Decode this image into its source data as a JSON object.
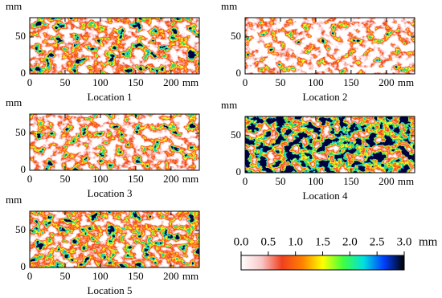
{
  "chart_data": [
    {
      "type": "heatmap",
      "title": "Location 1",
      "xlabel": "mm",
      "ylabel": "mm",
      "xlim": [
        0,
        240
      ],
      "xticks": [
        0,
        50,
        100,
        150,
        200
      ],
      "ylim": [
        0,
        76
      ],
      "yticks": [
        0,
        50
      ]
    },
    {
      "type": "heatmap",
      "title": "Location 2",
      "xlabel": "mm",
      "ylabel": "mm",
      "xlim": [
        0,
        240
      ],
      "xticks": [
        0,
        50,
        100,
        150,
        200
      ],
      "ylim": [
        0,
        76
      ],
      "yticks": [
        0,
        50
      ]
    },
    {
      "type": "heatmap",
      "title": "Location 3",
      "xlabel": "mm",
      "ylabel": "mm",
      "xlim": [
        0,
        240
      ],
      "xticks": [
        0,
        50,
        100,
        150,
        200
      ],
      "ylim": [
        0,
        76
      ],
      "yticks": [
        0,
        50
      ]
    },
    {
      "type": "heatmap",
      "title": "Location 4",
      "xlabel": "mm",
      "ylabel": "mm",
      "xlim": [
        0,
        240
      ],
      "xticks": [
        0,
        50,
        100,
        150,
        200
      ],
      "ylim": [
        0,
        76
      ],
      "yticks": [
        0,
        50
      ]
    },
    {
      "type": "heatmap",
      "title": "Location 5",
      "xlabel": "mm",
      "ylabel": "mm",
      "xlim": [
        0,
        240
      ],
      "xticks": [
        0,
        50,
        100,
        150,
        200
      ],
      "ylim": [
        0,
        76
      ],
      "yticks": [
        0,
        50
      ]
    },
    {
      "type": "colorbar",
      "label": "mm",
      "lim": [
        0,
        3
      ],
      "ticks": [
        {
          "value": 0,
          "label": "0.0"
        },
        {
          "value": 0.5,
          "label": "0.5"
        },
        {
          "value": 1,
          "label": "1.0"
        },
        {
          "value": 1.5,
          "label": "1.5"
        },
        {
          "value": 2,
          "label": "2.0"
        },
        {
          "value": 2.5,
          "label": "2.5"
        },
        {
          "value": 3,
          "label": "3.0"
        }
      ],
      "colors": [
        "#ffffff",
        "#f8c8c8",
        "#f04020",
        "#ff8000",
        "#ffff00",
        "#40ff40",
        "#00e0e0",
        "#0040ff",
        "#000000"
      ]
    }
  ]
}
